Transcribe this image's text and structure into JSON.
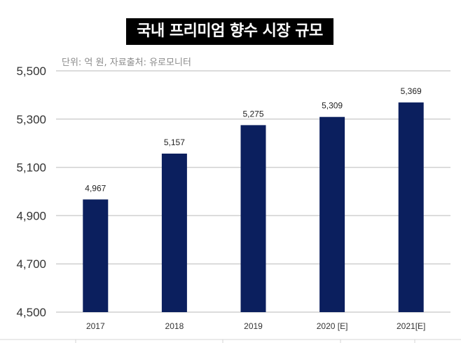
{
  "chart_data": {
    "type": "bar",
    "title": "국내 프리미엄 향수 시장 규모",
    "subtitle": "단위: 억 원, 자료출처: 유로모니터",
    "categories": [
      "2017",
      "2018",
      "2019",
      "2020 [E]",
      "2021[E]"
    ],
    "values": [
      4967,
      5157,
      5275,
      5309,
      5369
    ],
    "value_labels": [
      "4,967",
      "5,157",
      "5,275",
      "5,309",
      "5,369"
    ],
    "ylim": [
      4500,
      5500
    ],
    "yticks": [
      4500,
      4700,
      4900,
      5100,
      5300,
      5500
    ],
    "ytick_labels": [
      "4,500",
      "4,700",
      "4,900",
      "5,100",
      "5,300",
      "5,500"
    ],
    "xlabel": "",
    "ylabel": "",
    "grid": true,
    "legend": "none",
    "bar_color": "#0b1f5e"
  }
}
